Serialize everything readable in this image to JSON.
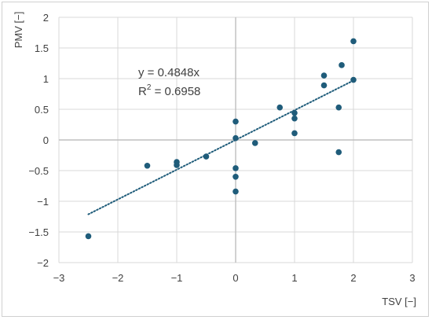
{
  "chart_data": {
    "type": "scatter",
    "xlabel": "TSV [−]",
    "ylabel": "PMV [−]",
    "xlim": [
      -3,
      3
    ],
    "ylim": [
      -2,
      2
    ],
    "x_ticks": [
      -3,
      -2,
      -1,
      0,
      1,
      2,
      3
    ],
    "y_ticks": [
      -2,
      -1.5,
      -1,
      -0.5,
      0,
      0.5,
      1,
      1.5,
      2
    ],
    "x_tick_labels": [
      "−3",
      "−2",
      "−1",
      "0",
      "1",
      "2",
      "3"
    ],
    "y_tick_labels": [
      "−2",
      "−1.5",
      "−1",
      "−0.5",
      "0",
      "0.5",
      "1",
      "1.5",
      "2"
    ],
    "grid": "major horizontal and vertical",
    "series": [
      {
        "color": "#1f5c7a",
        "points": [
          [
            -2.5,
            -1.57
          ],
          [
            -1.5,
            -0.42
          ],
          [
            -1.0,
            -0.36
          ],
          [
            -1.0,
            -0.41
          ],
          [
            -0.5,
            -0.27
          ],
          [
            0.0,
            0.3
          ],
          [
            0.0,
            0.03
          ],
          [
            0.0,
            -0.46
          ],
          [
            0.0,
            -0.6
          ],
          [
            0.0,
            -0.84
          ],
          [
            0.33,
            -0.05
          ],
          [
            0.75,
            0.53
          ],
          [
            1.0,
            0.44
          ],
          [
            1.0,
            0.35
          ],
          [
            1.0,
            0.11
          ],
          [
            1.5,
            1.05
          ],
          [
            1.5,
            0.89
          ],
          [
            1.75,
            0.53
          ],
          [
            1.75,
            -0.2
          ],
          [
            1.8,
            1.22
          ],
          [
            2.0,
            1.61
          ],
          [
            2.0,
            0.98
          ]
        ]
      }
    ],
    "trendline": {
      "type": "linear",
      "slope": 0.4848,
      "x_range": [
        -2.5,
        2.0
      ],
      "color": "#1f5c7a",
      "style": "dotted",
      "equation_label": "y = 0.4848x",
      "r2_label_prefix": "R",
      "r2_label_sup": "2",
      "r2_label_value": " = 0.6958"
    }
  }
}
